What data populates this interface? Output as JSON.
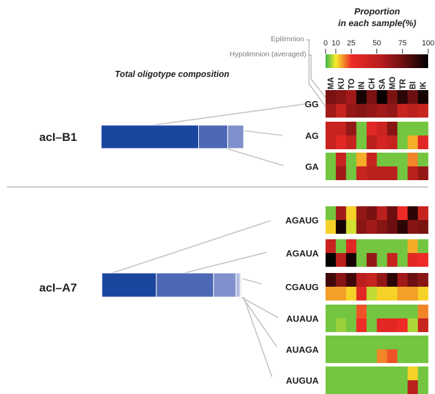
{
  "legend": {
    "title_line1": "Proportion",
    "title_line2": "in each sample(%)",
    "ticks": [
      "0",
      "10",
      "25",
      "50",
      "75",
      "100"
    ],
    "tick_values": [
      0,
      10,
      25,
      50,
      75,
      100
    ],
    "epilimnion_label": "Epilimnion",
    "hypolimnion_label": "Hypolimnion (averaged)"
  },
  "section_title": "Total oligotype composition",
  "samples": [
    "MA",
    "KU",
    "TO",
    "IN",
    "CH",
    "SA",
    "MO",
    "TR",
    "BI",
    "IK"
  ],
  "colors": {
    "very_low": "#3cb54a",
    "low": "#f7ec2a",
    "mid": "#ee2b26",
    "high": "#6d0f10",
    "max": "#000000",
    "bar_shades": [
      "#1b46a0",
      "#4d68b4",
      "#8090cc",
      "#b3bde2",
      "#dfe3f3",
      "#f2f4fa"
    ]
  },
  "chart_data": [
    {
      "type": "heatmap",
      "clade": "acI–B1",
      "composition_percent": [
        67,
        20,
        11
      ],
      "oligotypes": [
        {
          "name": "GG",
          "epilimnion": [
            70,
            65,
            55,
            95,
            70,
            98,
            70,
            90,
            75,
            95
          ],
          "hypolimnion": [
            55,
            40,
            60,
            65,
            60,
            55,
            60,
            40,
            45,
            40
          ]
        },
        {
          "name": "AG",
          "epilimnion": [
            40,
            40,
            60,
            3,
            30,
            38,
            65,
            3,
            3,
            3
          ],
          "hypolimnion": [
            40,
            30,
            40,
            3,
            45,
            35,
            40,
            3,
            15,
            30
          ]
        },
        {
          "name": "GA",
          "epilimnion": [
            3,
            40,
            3,
            15,
            40,
            3,
            3,
            3,
            18,
            3
          ],
          "hypolimnion": [
            3,
            55,
            3,
            40,
            45,
            45,
            45,
            3,
            45,
            60
          ]
        }
      ]
    },
    {
      "type": "heatmap",
      "clade": "acI–A7",
      "composition_percent": [
        39,
        41,
        16,
        3,
        1,
        0.5
      ],
      "oligotypes": [
        {
          "name": "AGAUG",
          "epilimnion": [
            3,
            55,
            12,
            60,
            70,
            45,
            75,
            25,
            90,
            40
          ],
          "hypolimnion": [
            12,
            95,
            8,
            65,
            55,
            65,
            75,
            90,
            65,
            70
          ]
        },
        {
          "name": "AGAUA",
          "epilimnion": [
            40,
            3,
            30,
            3,
            3,
            3,
            3,
            3,
            15,
            3
          ],
          "hypolimnion": [
            99,
            45,
            95,
            3,
            60,
            3,
            40,
            3,
            30,
            25
          ]
        },
        {
          "name": "CGAUG",
          "epilimnion": [
            85,
            65,
            85,
            45,
            40,
            60,
            90,
            55,
            75,
            65
          ],
          "hypolimnion": [
            16,
            16,
            12,
            30,
            7,
            12,
            12,
            16,
            16,
            12
          ]
        },
        {
          "name": "AUAUA",
          "epilimnion": [
            3,
            3,
            3,
            22,
            3,
            3,
            3,
            3,
            3,
            18
          ],
          "hypolimnion": [
            3,
            5,
            3,
            25,
            3,
            30,
            30,
            25,
            6,
            40
          ]
        },
        {
          "name": "AUAGA",
          "epilimnion": [
            3,
            3,
            3,
            3,
            3,
            3,
            3,
            3,
            3,
            3
          ],
          "hypolimnion": [
            3,
            3,
            3,
            3,
            3,
            18,
            22,
            3,
            3,
            3
          ]
        },
        {
          "name": "AUGUA",
          "epilimnion": [
            3,
            3,
            3,
            3,
            3,
            3,
            3,
            3,
            12,
            3
          ],
          "hypolimnion": [
            3,
            3,
            3,
            3,
            3,
            3,
            3,
            3,
            45,
            3
          ]
        }
      ]
    }
  ]
}
